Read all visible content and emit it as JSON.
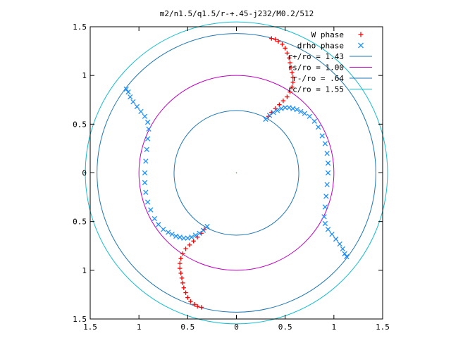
{
  "chart_data": {
    "type": "scatter",
    "title": "m2/n1.5/q1.5/r-+.45-j232/M0.2/512",
    "xlim": [
      -1.5,
      1.5
    ],
    "ylim": [
      -1.5,
      1.5
    ],
    "x_tick_labels": [
      "1.5",
      "1",
      "0.5",
      "0",
      "0.5",
      "1",
      "1.5"
    ],
    "y_tick_labels": [
      "1.5",
      "1",
      "0.5",
      "0",
      "0.5",
      "1",
      "1.5"
    ],
    "grid": false,
    "legend_position": "top-right",
    "legend": [
      {
        "label": "W phase",
        "marker": "+",
        "color": "#ff0000"
      },
      {
        "label": "drho phase",
        "marker": "x",
        "color": "#1e90ff"
      },
      {
        "label": "r+/ro = 1.43",
        "marker": "line",
        "color": "#1f77b4"
      },
      {
        "label": "rs/ro = 1.00",
        "marker": "line",
        "color": "#c000c0"
      },
      {
        "label": "r-/ro = .64",
        "marker": "line",
        "color": "#1f77b4"
      },
      {
        "label": "rc/ro = 1.55",
        "marker": "line",
        "color": "#17becf"
      }
    ],
    "circles": [
      {
        "name": "r+/ro",
        "radius": 1.43,
        "color": "#1f77b4"
      },
      {
        "name": "rs/ro",
        "radius": 1.0,
        "color": "#c000c0"
      },
      {
        "name": "r-/ro",
        "radius": 0.64,
        "color": "#1f77b4"
      },
      {
        "name": "rc/ro",
        "radius": 1.55,
        "color": "#17becf"
      }
    ],
    "series": [
      {
        "name": "W phase",
        "marker": "+",
        "color": "#ff0000",
        "points": [
          [
            0.33,
            0.58
          ],
          [
            0.36,
            0.62
          ],
          [
            0.4,
            0.66
          ],
          [
            0.44,
            0.7
          ],
          [
            0.48,
            0.74
          ],
          [
            0.52,
            0.78
          ],
          [
            0.55,
            0.83
          ],
          [
            0.57,
            0.88
          ],
          [
            0.58,
            0.93
          ],
          [
            0.58,
            0.98
          ],
          [
            0.57,
            1.03
          ],
          [
            0.56,
            1.08
          ],
          [
            0.55,
            1.13
          ],
          [
            0.54,
            1.18
          ],
          [
            0.52,
            1.23
          ],
          [
            0.5,
            1.28
          ],
          [
            0.47,
            1.32
          ],
          [
            0.43,
            1.35
          ],
          [
            0.4,
            1.37
          ],
          [
            0.36,
            1.38
          ],
          [
            -0.33,
            -0.58
          ],
          [
            -0.36,
            -0.62
          ],
          [
            -0.4,
            -0.66
          ],
          [
            -0.44,
            -0.7
          ],
          [
            -0.48,
            -0.74
          ],
          [
            -0.52,
            -0.78
          ],
          [
            -0.55,
            -0.83
          ],
          [
            -0.57,
            -0.88
          ],
          [
            -0.58,
            -0.93
          ],
          [
            -0.58,
            -0.98
          ],
          [
            -0.57,
            -1.03
          ],
          [
            -0.56,
            -1.08
          ],
          [
            -0.55,
            -1.13
          ],
          [
            -0.54,
            -1.18
          ],
          [
            -0.52,
            -1.23
          ],
          [
            -0.5,
            -1.28
          ],
          [
            -0.47,
            -1.32
          ],
          [
            -0.43,
            -1.35
          ],
          [
            -0.4,
            -1.37
          ],
          [
            -0.36,
            -1.38
          ]
        ]
      },
      {
        "name": "drho phase",
        "marker": "x",
        "color": "#1e90ff",
        "points": [
          [
            0.3,
            0.55
          ],
          [
            0.34,
            0.59
          ],
          [
            0.38,
            0.62
          ],
          [
            0.42,
            0.64
          ],
          [
            0.46,
            0.66
          ],
          [
            0.5,
            0.67
          ],
          [
            0.54,
            0.67
          ],
          [
            0.58,
            0.66
          ],
          [
            0.62,
            0.65
          ],
          [
            0.66,
            0.63
          ],
          [
            0.7,
            0.61
          ],
          [
            0.75,
            0.58
          ],
          [
            0.8,
            0.53
          ],
          [
            0.84,
            0.47
          ],
          [
            0.88,
            0.38
          ],
          [
            0.91,
            0.3
          ],
          [
            0.93,
            0.2
          ],
          [
            0.94,
            0.1
          ],
          [
            0.94,
            0.0
          ],
          [
            0.93,
            -0.12
          ],
          [
            0.92,
            -0.24
          ],
          [
            0.91,
            -0.35
          ],
          [
            0.9,
            -0.45
          ],
          [
            0.91,
            -0.52
          ],
          [
            0.94,
            -0.58
          ],
          [
            0.98,
            -0.63
          ],
          [
            1.02,
            -0.68
          ],
          [
            1.06,
            -0.73
          ],
          [
            1.09,
            -0.78
          ],
          [
            1.11,
            -0.83
          ],
          [
            1.13,
            -0.86
          ],
          [
            -0.3,
            -0.55
          ],
          [
            -0.34,
            -0.59
          ],
          [
            -0.38,
            -0.62
          ],
          [
            -0.42,
            -0.64
          ],
          [
            -0.46,
            -0.66
          ],
          [
            -0.5,
            -0.67
          ],
          [
            -0.54,
            -0.67
          ],
          [
            -0.58,
            -0.66
          ],
          [
            -0.62,
            -0.65
          ],
          [
            -0.66,
            -0.63
          ],
          [
            -0.7,
            -0.61
          ],
          [
            -0.75,
            -0.58
          ],
          [
            -0.8,
            -0.53
          ],
          [
            -0.84,
            -0.47
          ],
          [
            -0.88,
            -0.38
          ],
          [
            -0.91,
            -0.3
          ],
          [
            -0.93,
            -0.2
          ],
          [
            -0.94,
            -0.1
          ],
          [
            -0.94,
            0.0
          ],
          [
            -0.93,
            0.12
          ],
          [
            -0.92,
            0.24
          ],
          [
            -0.91,
            0.35
          ],
          [
            -0.9,
            0.45
          ],
          [
            -0.91,
            0.52
          ],
          [
            -0.94,
            0.58
          ],
          [
            -0.98,
            0.63
          ],
          [
            -1.02,
            0.68
          ],
          [
            -1.06,
            0.73
          ],
          [
            -1.09,
            0.78
          ],
          [
            -1.11,
            0.83
          ],
          [
            -1.13,
            0.86
          ]
        ]
      }
    ]
  }
}
